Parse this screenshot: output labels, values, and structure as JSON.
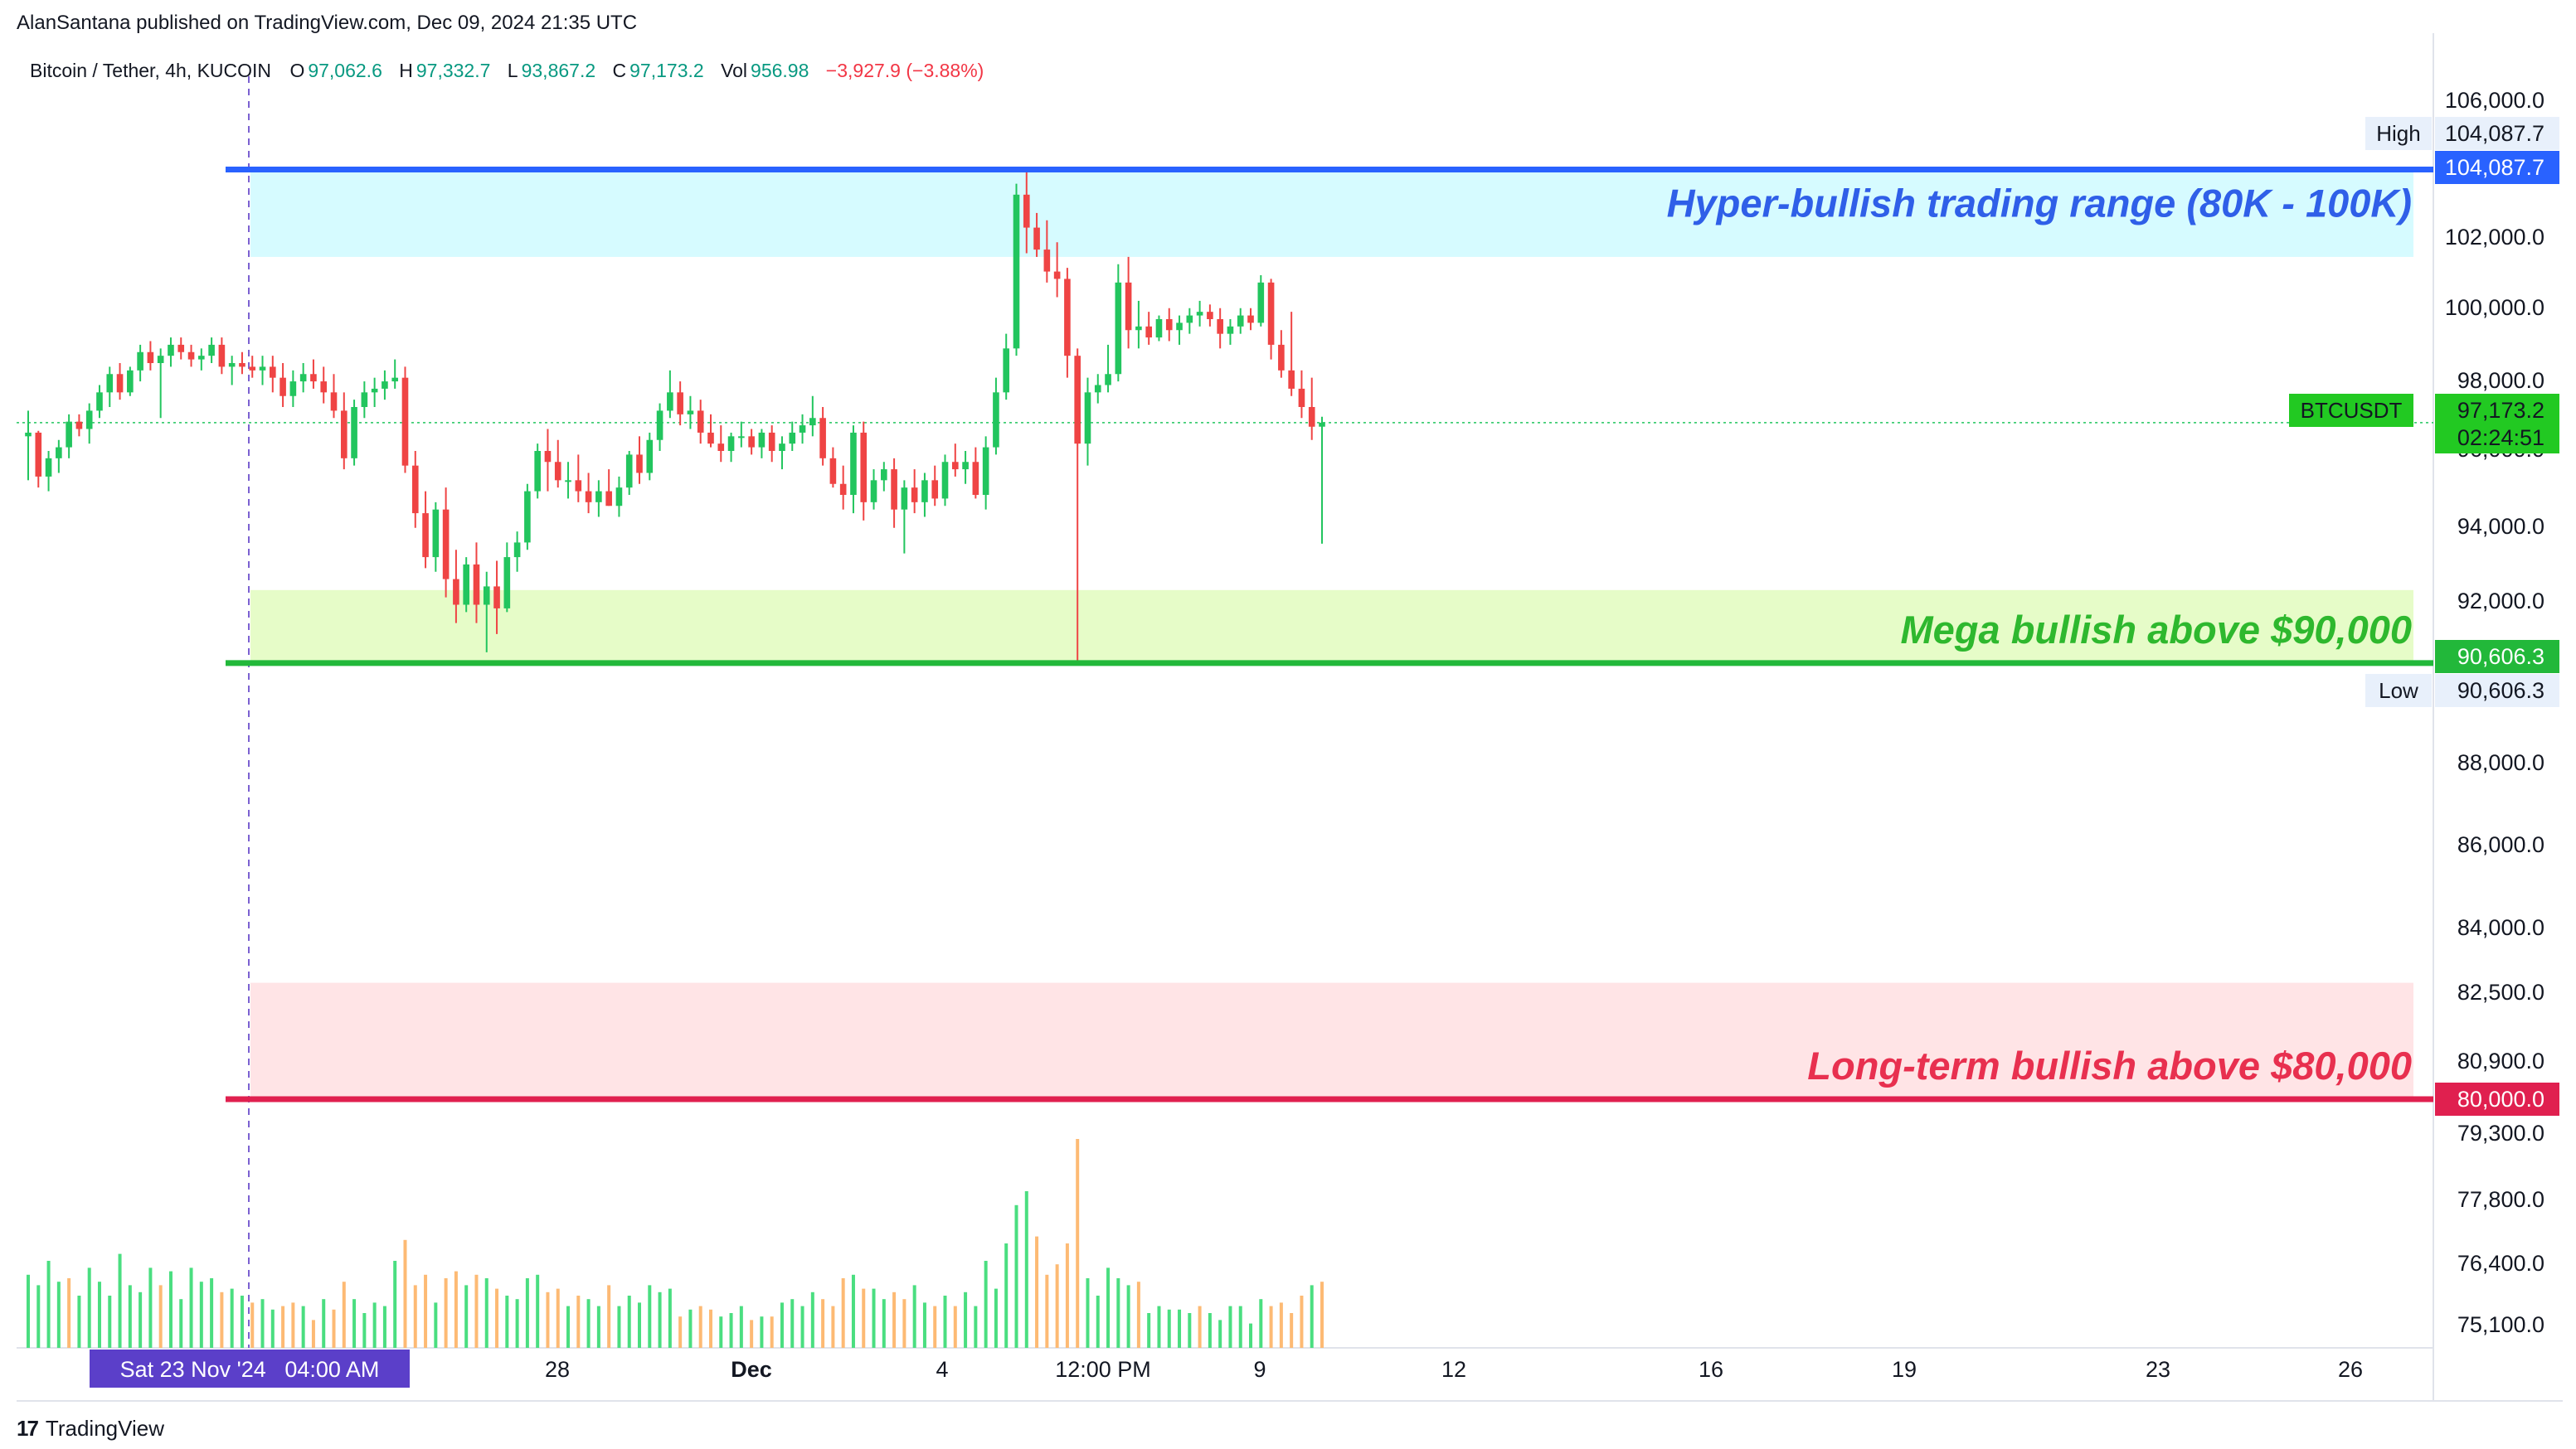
{
  "header": {
    "published_line": "AlanSantana published on TradingView.com, Dec 09, 2024 21:35 UTC"
  },
  "legend": {
    "symbol": "Bitcoin / Tether, 4h, KUCOIN",
    "o_label": "O",
    "o_value": "97,062.6",
    "h_label": "H",
    "h_value": "97,332.7",
    "l_label": "L",
    "l_value": "93,867.2",
    "c_label": "C",
    "c_value": "97,173.2",
    "vol_label": "Vol",
    "vol_value": "956.98",
    "change": "−3,927.9 (−3.88%)"
  },
  "footer": {
    "brand": "TradingView"
  },
  "colors": {
    "up": "#22c55e",
    "down": "#ef4444",
    "vol_up": "#4ade80",
    "vol_down": "#fdba74",
    "blue_line": "#2962ff",
    "green_line": "#22b83a",
    "red_line": "#e0204f",
    "blue_zone": "#d6fbff",
    "green_zone": "#e6fcc8",
    "red_zone": "#ffe4e6",
    "blue_text": "#2f5fe8",
    "green_text": "#2eb82e",
    "red_text": "#e8304f",
    "crosshair_tag": "#5b3fc9"
  },
  "chart_data": {
    "type": "candlestick",
    "y_axis_ticks": [
      "106,000.0",
      "102,000.0",
      "100,000.0",
      "98,000.0",
      "96,000.0",
      "94,000.0",
      "92,000.0",
      "88,000.0",
      "86,000.0",
      "84,000.0",
      "82,500.0",
      "80,900.0",
      "79,300.0",
      "77,800.0",
      "76,400.0",
      "75,100.0"
    ],
    "x_axis_ticks": [
      "28",
      "Dec",
      "4",
      "12:00 PM",
      "9",
      "12",
      "16",
      "19",
      "23",
      "26"
    ],
    "crosshair_date": "Sat 23 Nov '24   04:00 AM",
    "price_labels": {
      "high_label": "High",
      "high_value": "104,087.7",
      "blue_line_value": "104,087.7",
      "symbol_tag": "BTCUSDT",
      "last_price": "97,173.2",
      "countdown": "02:24:51",
      "green_line_value": "90,606.3",
      "low_label": "Low",
      "low_value": "90,606.3",
      "red_line_value": "80,000.0"
    },
    "levels": [
      {
        "name": "hyper-bullish",
        "value": 104087.7,
        "zone_text": "Hyper-bullish trading range (80K - 100K)"
      },
      {
        "name": "mega-bullish",
        "value": 90606.3,
        "zone_text": "Mega bullish above $90,000"
      },
      {
        "name": "long-term-bullish",
        "value": 80000,
        "zone_text": "Long-term bullish above $80,000"
      }
    ],
    "candles": [
      [
        96800,
        97500,
        95600,
        96900
      ],
      [
        96900,
        96950,
        95400,
        95700
      ],
      [
        95700,
        96400,
        95300,
        96200
      ],
      [
        96200,
        96700,
        95800,
        96500
      ],
      [
        96500,
        97400,
        96200,
        97200
      ],
      [
        97200,
        97400,
        96800,
        97000
      ],
      [
        97000,
        97700,
        96600,
        97500
      ],
      [
        97500,
        98200,
        97300,
        98000
      ],
      [
        98000,
        98700,
        97600,
        98500
      ],
      [
        98500,
        98800,
        97800,
        98000
      ],
      [
        98000,
        98700,
        97900,
        98600
      ],
      [
        98600,
        99300,
        98300,
        99100
      ],
      [
        99100,
        99400,
        98600,
        98800
      ],
      [
        98800,
        99200,
        97300,
        99000
      ],
      [
        99000,
        99500,
        98700,
        99300
      ],
      [
        99300,
        99500,
        98900,
        99100
      ],
      [
        99100,
        99300,
        98700,
        98900
      ],
      [
        98900,
        99200,
        98600,
        99000
      ],
      [
        99000,
        99500,
        98800,
        99300
      ],
      [
        99300,
        99500,
        98500,
        98700
      ],
      [
        98700,
        99000,
        98200,
        98800
      ],
      [
        98800,
        99100,
        98500,
        98700
      ],
      [
        98700,
        99000,
        98400,
        98600
      ],
      [
        98600,
        99000,
        98200,
        98700
      ],
      [
        98700,
        99000,
        98000,
        98400
      ],
      [
        98400,
        98800,
        97600,
        97900
      ],
      [
        97900,
        98600,
        97600,
        98300
      ],
      [
        98300,
        98800,
        98000,
        98500
      ],
      [
        98500,
        98900,
        98100,
        98300
      ],
      [
        98300,
        98700,
        97700,
        98000
      ],
      [
        98000,
        98500,
        97300,
        97500
      ],
      [
        97500,
        98000,
        95900,
        96200
      ],
      [
        96200,
        97800,
        96000,
        97600
      ],
      [
        97600,
        98300,
        97300,
        98000
      ],
      [
        98000,
        98400,
        97600,
        98100
      ],
      [
        98100,
        98600,
        97800,
        98300
      ],
      [
        98300,
        98900,
        98100,
        98400
      ],
      [
        98400,
        98700,
        95800,
        96000
      ],
      [
        96000,
        96400,
        94300,
        94700
      ],
      [
        94700,
        95300,
        93200,
        93500
      ],
      [
        93500,
        95000,
        93100,
        94800
      ],
      [
        94800,
        95400,
        92400,
        92900
      ],
      [
        92900,
        93700,
        91700,
        92200
      ],
      [
        92200,
        93500,
        92000,
        93300
      ],
      [
        93300,
        93900,
        91700,
        92200
      ],
      [
        92200,
        93100,
        90900,
        92700
      ],
      [
        92700,
        93400,
        91400,
        92100
      ],
      [
        92100,
        93900,
        92000,
        93500
      ],
      [
        93500,
        94200,
        93100,
        93900
      ],
      [
        93900,
        95500,
        93700,
        95300
      ],
      [
        95300,
        96600,
        95100,
        96400
      ],
      [
        96400,
        97000,
        95300,
        96100
      ],
      [
        96100,
        96700,
        95400,
        95600
      ],
      [
        95600,
        96100,
        95100,
        95600
      ],
      [
        95600,
        96300,
        95000,
        95300
      ],
      [
        95300,
        95800,
        94700,
        95000
      ],
      [
        95000,
        95600,
        94600,
        95300
      ],
      [
        95300,
        95900,
        94900,
        94900
      ],
      [
        94900,
        95700,
        94600,
        95400
      ],
      [
        95400,
        96400,
        95200,
        96300
      ],
      [
        96300,
        96800,
        95500,
        95800
      ],
      [
        95800,
        96900,
        95600,
        96700
      ],
      [
        96700,
        97700,
        96400,
        97500
      ],
      [
        97500,
        98600,
        97300,
        98000
      ],
      [
        98000,
        98300,
        97100,
        97400
      ],
      [
        97400,
        97900,
        97000,
        97500
      ],
      [
        97500,
        97800,
        96600,
        96900
      ],
      [
        96900,
        97400,
        96500,
        96600
      ],
      [
        96600,
        97100,
        96100,
        96400
      ],
      [
        96400,
        96900,
        96100,
        96800
      ],
      [
        96800,
        97200,
        96500,
        96800
      ],
      [
        96800,
        97000,
        96300,
        96500
      ],
      [
        96500,
        97000,
        96200,
        96900
      ],
      [
        96900,
        97100,
        96100,
        96400
      ],
      [
        96400,
        96800,
        95900,
        96600
      ],
      [
        96600,
        97200,
        96400,
        96900
      ],
      [
        96900,
        97400,
        96600,
        97100
      ],
      [
        97100,
        97900,
        96800,
        97300
      ],
      [
        97300,
        97600,
        96000,
        96200
      ],
      [
        96200,
        96500,
        95400,
        95500
      ],
      [
        95500,
        96000,
        94800,
        95200
      ],
      [
        95200,
        97100,
        94700,
        96900
      ],
      [
        96900,
        97200,
        94500,
        95000
      ],
      [
        95000,
        95900,
        94800,
        95600
      ],
      [
        95600,
        96100,
        95300,
        95900
      ],
      [
        95900,
        96200,
        94300,
        94800
      ],
      [
        94800,
        95600,
        93600,
        95400
      ],
      [
        95400,
        95900,
        94700,
        95000
      ],
      [
        95000,
        95800,
        94600,
        95600
      ],
      [
        95600,
        96000,
        94900,
        95100
      ],
      [
        95100,
        96300,
        94900,
        96100
      ],
      [
        96100,
        96600,
        95700,
        95900
      ],
      [
        95900,
        96400,
        95500,
        96100
      ],
      [
        96100,
        96500,
        95100,
        95200
      ],
      [
        95200,
        96800,
        94800,
        96500
      ],
      [
        96500,
        98400,
        96300,
        98000
      ],
      [
        98000,
        99600,
        97800,
        99200
      ],
      [
        99200,
        103700,
        99000,
        103400
      ],
      [
        103400,
        104088,
        101800,
        102500
      ],
      [
        102500,
        102900,
        101700,
        101900
      ],
      [
        101900,
        102700,
        101000,
        101300
      ],
      [
        101300,
        102100,
        100600,
        101100
      ],
      [
        101100,
        101400,
        98400,
        99000
      ],
      [
        99000,
        99200,
        90606,
        96600
      ],
      [
        96600,
        98400,
        96000,
        98000
      ],
      [
        98000,
        98500,
        97700,
        98200
      ],
      [
        98200,
        99300,
        98000,
        98500
      ],
      [
        98500,
        101500,
        98300,
        101000
      ],
      [
        101000,
        101700,
        99200,
        99700
      ],
      [
        99700,
        100500,
        99200,
        99800
      ],
      [
        99800,
        100200,
        99300,
        99500
      ],
      [
        99500,
        100100,
        99400,
        100000
      ],
      [
        100000,
        100300,
        99400,
        99700
      ],
      [
        99700,
        100100,
        99300,
        99900
      ],
      [
        99900,
        100300,
        99600,
        100100
      ],
      [
        100100,
        100500,
        99800,
        100200
      ],
      [
        100200,
        100400,
        99800,
        100000
      ],
      [
        100000,
        100300,
        99200,
        99600
      ],
      [
        99600,
        100000,
        99300,
        99800
      ],
      [
        99800,
        100300,
        99600,
        100100
      ],
      [
        100100,
        100300,
        99700,
        99900
      ],
      [
        99900,
        101200,
        99800,
        101000
      ],
      [
        101000,
        101100,
        98900,
        99300
      ],
      [
        99300,
        99700,
        98400,
        98600
      ],
      [
        98600,
        100200,
        97900,
        98100
      ],
      [
        98100,
        98600,
        97300,
        97600
      ],
      [
        97600,
        98400,
        96700,
        97062
      ],
      [
        97062.6,
        97332.7,
        93867.2,
        97173.2
      ]
    ],
    "volume": [
      [
        210,
        1
      ],
      [
        180,
        1
      ],
      [
        250,
        1
      ],
      [
        190,
        1
      ],
      [
        200,
        0
      ],
      [
        150,
        1
      ],
      [
        230,
        1
      ],
      [
        190,
        1
      ],
      [
        150,
        1
      ],
      [
        270,
        1
      ],
      [
        180,
        1
      ],
      [
        160,
        1
      ],
      [
        230,
        1
      ],
      [
        180,
        0
      ],
      [
        220,
        1
      ],
      [
        140,
        1
      ],
      [
        230,
        1
      ],
      [
        190,
        1
      ],
      [
        200,
        1
      ],
      [
        160,
        0
      ],
      [
        170,
        1
      ],
      [
        150,
        1
      ],
      [
        130,
        0
      ],
      [
        140,
        1
      ],
      [
        110,
        1
      ],
      [
        120,
        0
      ],
      [
        130,
        0
      ],
      [
        120,
        1
      ],
      [
        80,
        0
      ],
      [
        140,
        1
      ],
      [
        110,
        0
      ],
      [
        190,
        0
      ],
      [
        140,
        1
      ],
      [
        100,
        1
      ],
      [
        130,
        1
      ],
      [
        120,
        1
      ],
      [
        250,
        1
      ],
      [
        310,
        0
      ],
      [
        180,
        0
      ],
      [
        210,
        0
      ],
      [
        130,
        1
      ],
      [
        200,
        0
      ],
      [
        220,
        0
      ],
      [
        180,
        1
      ],
      [
        210,
        0
      ],
      [
        200,
        1
      ],
      [
        170,
        0
      ],
      [
        150,
        1
      ],
      [
        140,
        1
      ],
      [
        200,
        1
      ],
      [
        210,
        1
      ],
      [
        160,
        0
      ],
      [
        170,
        0
      ],
      [
        120,
        1
      ],
      [
        150,
        0
      ],
      [
        140,
        1
      ],
      [
        120,
        1
      ],
      [
        180,
        0
      ],
      [
        120,
        1
      ],
      [
        150,
        1
      ],
      [
        130,
        1
      ],
      [
        180,
        1
      ],
      [
        160,
        1
      ],
      [
        170,
        1
      ],
      [
        90,
        0
      ],
      [
        110,
        1
      ],
      [
        120,
        0
      ],
      [
        110,
        0
      ],
      [
        90,
        1
      ],
      [
        100,
        1
      ],
      [
        120,
        1
      ],
      [
        80,
        0
      ],
      [
        90,
        1
      ],
      [
        90,
        0
      ],
      [
        130,
        1
      ],
      [
        140,
        1
      ],
      [
        120,
        1
      ],
      [
        160,
        1
      ],
      [
        140,
        0
      ],
      [
        120,
        0
      ],
      [
        200,
        0
      ],
      [
        210,
        1
      ],
      [
        170,
        0
      ],
      [
        170,
        1
      ],
      [
        140,
        1
      ],
      [
        160,
        0
      ],
      [
        140,
        0
      ],
      [
        180,
        1
      ],
      [
        130,
        1
      ],
      [
        120,
        0
      ],
      [
        150,
        1
      ],
      [
        120,
        0
      ],
      [
        160,
        1
      ],
      [
        120,
        1
      ],
      [
        250,
        1
      ],
      [
        170,
        1
      ],
      [
        300,
        1
      ],
      [
        410,
        1
      ],
      [
        450,
        1
      ],
      [
        320,
        0
      ],
      [
        210,
        0
      ],
      [
        240,
        0
      ],
      [
        300,
        0
      ],
      [
        600,
        0
      ],
      [
        200,
        1
      ],
      [
        150,
        1
      ],
      [
        230,
        1
      ],
      [
        200,
        1
      ],
      [
        180,
        1
      ],
      [
        190,
        0
      ],
      [
        100,
        1
      ],
      [
        120,
        1
      ],
      [
        110,
        1
      ],
      [
        110,
        1
      ],
      [
        100,
        1
      ],
      [
        120,
        0
      ],
      [
        100,
        1
      ],
      [
        80,
        1
      ],
      [
        120,
        1
      ],
      [
        120,
        1
      ],
      [
        70,
        1
      ],
      [
        140,
        1
      ],
      [
        120,
        0
      ],
      [
        130,
        0
      ],
      [
        100,
        0
      ],
      [
        150,
        0
      ],
      [
        180,
        1
      ],
      [
        190,
        0
      ],
      [
        260,
        1
      ]
    ]
  }
}
